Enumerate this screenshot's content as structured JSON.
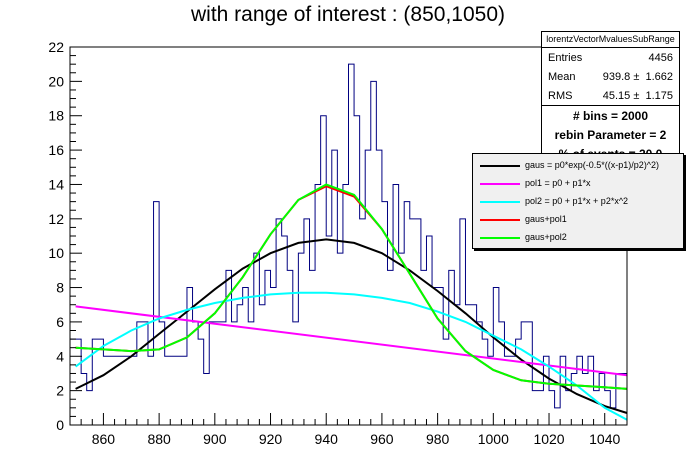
{
  "chart_data": {
    "type": "line",
    "title": "with range of interest : (850,1050)",
    "xlim": [
      848,
      1048
    ],
    "ylim": [
      0,
      22
    ],
    "x_ticks": [
      860,
      880,
      900,
      920,
      940,
      960,
      980,
      1000,
      1020,
      1040
    ],
    "y_ticks": [
      0,
      2,
      4,
      6,
      8,
      10,
      12,
      14,
      16,
      18,
      20,
      22
    ],
    "grid": false,
    "histogram": {
      "name": "lorentzVectorMvaluesSubRange",
      "color": "#000080",
      "bin_width": 2,
      "x_start": 848,
      "values": [
        5,
        5,
        3,
        2,
        5,
        5,
        4,
        4,
        4,
        4,
        4,
        4,
        6,
        6,
        4,
        13,
        6,
        4,
        4,
        4,
        4,
        8,
        6,
        5,
        3,
        6,
        6,
        6,
        9,
        6,
        7,
        8,
        6,
        10,
        7,
        9,
        8,
        12,
        11,
        9,
        6,
        10,
        12,
        9,
        14,
        18,
        11,
        16,
        10,
        14,
        21,
        18,
        12,
        16,
        20,
        16,
        13,
        9,
        14,
        10,
        13,
        12,
        12,
        9,
        11,
        8,
        8,
        5,
        9,
        7,
        12,
        7,
        7,
        6,
        5,
        4,
        8,
        6,
        4,
        4,
        5,
        6,
        6,
        2,
        2,
        4,
        2,
        1,
        4,
        2,
        3,
        4,
        3,
        4,
        2,
        3,
        2,
        1,
        3,
        3
      ]
    },
    "series": [
      {
        "name": "gaus = p0*exp(-0.5*((x-p1)/p2)^2)",
        "color": "#000000",
        "x": [
          850,
          860,
          870,
          880,
          890,
          900,
          910,
          920,
          930,
          940,
          950,
          960,
          970,
          980,
          990,
          1000,
          1010,
          1020,
          1030,
          1040,
          1048
        ],
        "y": [
          2.1,
          2.9,
          4.0,
          5.3,
          6.6,
          7.9,
          9.1,
          10.0,
          10.6,
          10.8,
          10.6,
          10.0,
          9.0,
          7.8,
          6.5,
          5.1,
          3.8,
          2.7,
          1.8,
          1.1,
          0.7
        ]
      },
      {
        "name": "pol1 = p0 + p1*x",
        "color": "#ff00ff",
        "x": [
          850,
          1048
        ],
        "y": [
          6.9,
          2.9
        ]
      },
      {
        "name": "pol2 = p0 + p1*x + p2*x^2",
        "color": "#00ffff",
        "x": [
          850,
          860,
          870,
          880,
          890,
          900,
          910,
          920,
          930,
          940,
          950,
          960,
          970,
          980,
          990,
          1000,
          1010,
          1020,
          1030,
          1040,
          1048
        ],
        "y": [
          3.4,
          4.6,
          5.5,
          6.2,
          6.7,
          7.1,
          7.4,
          7.6,
          7.7,
          7.7,
          7.6,
          7.4,
          7.1,
          6.6,
          6.0,
          5.2,
          4.4,
          3.4,
          2.3,
          1.0,
          0.3
        ]
      },
      {
        "name": "gaus+pol1",
        "color": "#ff0000",
        "x": [
          850,
          860,
          870,
          880,
          890,
          900,
          910,
          920,
          930,
          940,
          950,
          960,
          970,
          980,
          990,
          1000,
          1010,
          1020,
          1030,
          1040,
          1048
        ],
        "y": [
          4.5,
          4.4,
          4.3,
          4.4,
          5.1,
          6.5,
          8.6,
          11.1,
          13.1,
          13.9,
          13.3,
          11.4,
          8.8,
          6.2,
          4.3,
          3.2,
          2.6,
          2.4,
          2.3,
          2.2,
          2.1
        ]
      },
      {
        "name": "gaus+pol2",
        "color": "#00ff00",
        "x": [
          850,
          860,
          870,
          880,
          890,
          900,
          910,
          920,
          930,
          940,
          950,
          960,
          970,
          980,
          990,
          1000,
          1010,
          1020,
          1030,
          1040,
          1048
        ],
        "y": [
          4.5,
          4.4,
          4.3,
          4.4,
          5.1,
          6.5,
          8.6,
          11.1,
          13.1,
          14.0,
          13.4,
          11.4,
          8.8,
          6.2,
          4.3,
          3.2,
          2.6,
          2.4,
          2.3,
          2.2,
          2.1
        ]
      }
    ]
  },
  "stats": {
    "name": "lorentzVectorMvaluesSubRange",
    "entries_label": "Entries",
    "entries": "4456",
    "mean_label": "Mean",
    "mean": "939.8 ±  1.662",
    "rms_label": "RMS",
    "rms": "45.15 ±  1.175",
    "info1": "# bins = 2000",
    "info2": "rebin Parameter = 2",
    "info3": "% of events = 20.0"
  }
}
